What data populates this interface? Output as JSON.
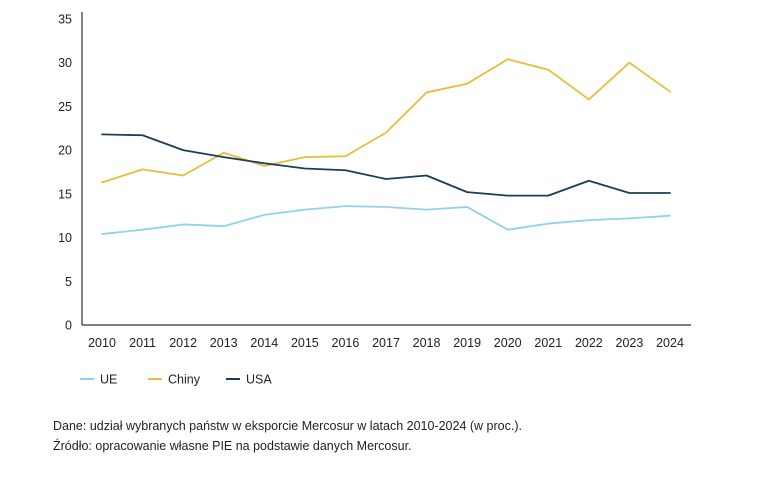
{
  "chart_data": {
    "type": "line",
    "title": "",
    "xlabel": "",
    "ylabel": "",
    "x": [
      2010,
      2011,
      2012,
      2013,
      2014,
      2015,
      2016,
      2017,
      2018,
      2019,
      2020,
      2021,
      2022,
      2023,
      2024
    ],
    "ylim": [
      0,
      35
    ],
    "yticks": [
      0,
      5,
      10,
      15,
      20,
      25,
      30,
      35
    ],
    "grid": false,
    "legend_position": "bottom-left",
    "series": [
      {
        "name": "UE",
        "color": "#8fd3e6",
        "values": [
          10.4,
          10.9,
          11.5,
          11.3,
          12.6,
          13.2,
          13.6,
          13.5,
          13.2,
          13.5,
          10.9,
          11.6,
          12.0,
          12.2,
          12.5
        ]
      },
      {
        "name": "Chiny",
        "color": "#e8bd3a",
        "values": [
          16.3,
          17.8,
          17.1,
          19.7,
          18.2,
          19.2,
          19.3,
          22.0,
          26.6,
          27.6,
          30.4,
          29.2,
          25.8,
          30.0,
          26.7
        ]
      },
      {
        "name": "USA",
        "color": "#1b3e55",
        "values": [
          21.8,
          21.7,
          20.0,
          19.2,
          18.5,
          17.9,
          17.7,
          16.7,
          17.1,
          15.2,
          14.8,
          14.8,
          16.5,
          15.1,
          15.1
        ]
      }
    ]
  },
  "notes": {
    "line1": "Dane: udział wybranych państw w eksporcie Mercosur w latach 2010-2024 (w proc.).",
    "line2": "Źródło: opracowanie własne PIE na podstawie danych Mercosur."
  }
}
